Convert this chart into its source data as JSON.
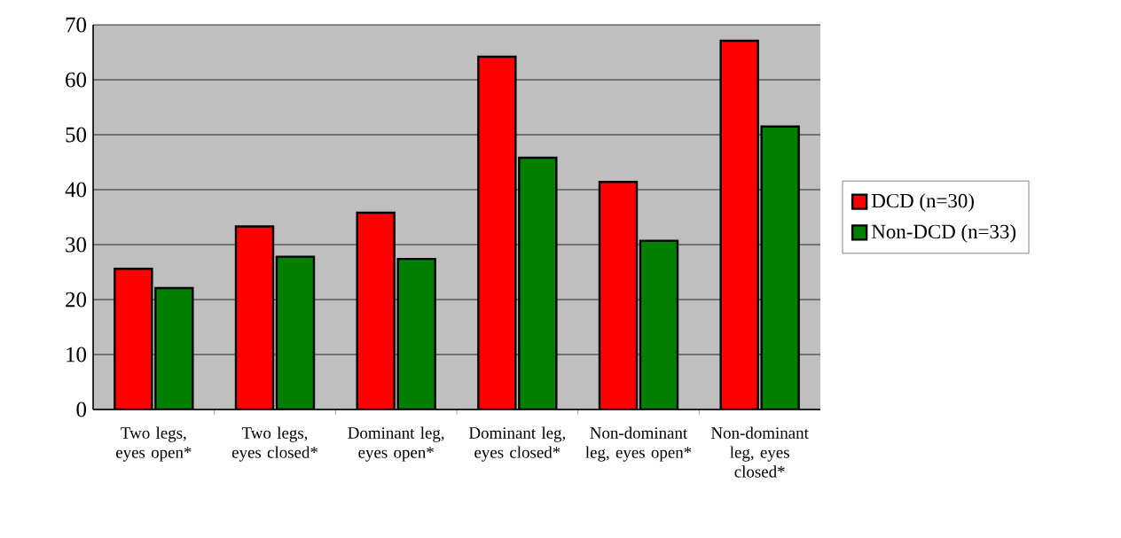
{
  "chart_data": {
    "type": "bar",
    "categories": [
      "Two legs, eyes open*",
      "Two legs, eyes closed*",
      "Dominant leg, eyes open*",
      "Dominant leg, eyes closed*",
      "Non-dominant leg, eyes open*",
      "Non-dominant leg, eyes closed*"
    ],
    "series": [
      {
        "name": "DCD (n=30)",
        "color": "#ff0000",
        "values": [
          25.6,
          33.3,
          35.8,
          64.2,
          41.4,
          67.1
        ]
      },
      {
        "name": "Non-DCD (n=33)",
        "color": "#007f00",
        "values": [
          22.1,
          27.8,
          27.4,
          45.8,
          30.7,
          51.5
        ]
      }
    ],
    "ylim": [
      0,
      70
    ],
    "yticks": [
      0,
      10,
      20,
      30,
      40,
      50,
      60,
      70
    ],
    "grid": "y",
    "legend": "right"
  }
}
